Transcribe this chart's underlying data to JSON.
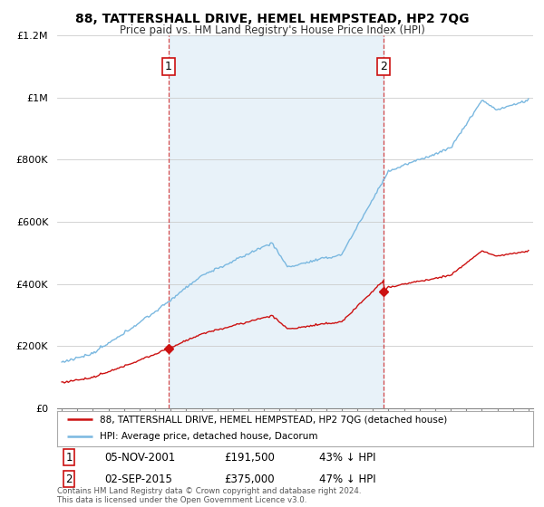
{
  "title": "88, TATTERSHALL DRIVE, HEMEL HEMPSTEAD, HP2 7QG",
  "subtitle": "Price paid vs. HM Land Registry's House Price Index (HPI)",
  "ylim": [
    0,
    1200000
  ],
  "yticks": [
    0,
    200000,
    400000,
    600000,
    800000,
    1000000,
    1200000
  ],
  "ytick_labels": [
    "£0",
    "£200K",
    "£400K",
    "£600K",
    "£800K",
    "£1M",
    "£1.2M"
  ],
  "hpi_color": "#7ab8e0",
  "hpi_fill_color": "#daeaf6",
  "price_color": "#cc1111",
  "transaction1_year": 2001.85,
  "transaction1_price": 191500,
  "transaction2_year": 2015.67,
  "transaction2_price": 375000,
  "legend_label1": "88, TATTERSHALL DRIVE, HEMEL HEMPSTEAD, HP2 7QG (detached house)",
  "legend_label2": "HPI: Average price, detached house, Dacorum",
  "table_row1": [
    "1",
    "05-NOV-2001",
    "£191,500",
    "43% ↓ HPI"
  ],
  "table_row2": [
    "2",
    "02-SEP-2015",
    "£375,000",
    "47% ↓ HPI"
  ],
  "footnote": "Contains HM Land Registry data © Crown copyright and database right 2024.\nThis data is licensed under the Open Government Licence v3.0.",
  "background_color": "#ffffff",
  "grid_color": "#cccccc",
  "xstart": 1995,
  "xend": 2025
}
